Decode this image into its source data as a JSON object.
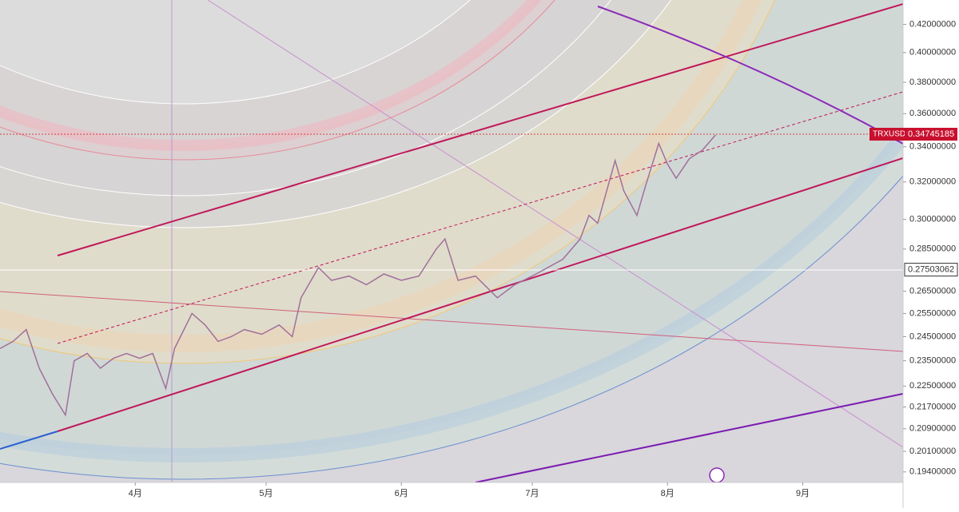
{
  "chart_data": {
    "type": "line",
    "symbol": "TRXUSD",
    "log_scale": true,
    "x": [
      "03-01",
      "03-04",
      "03-07",
      "03-10",
      "03-13",
      "03-16",
      "03-18",
      "03-21",
      "03-24",
      "03-27",
      "03-30",
      "04-02",
      "04-05",
      "04-08",
      "04-10",
      "04-14",
      "04-17",
      "04-20",
      "04-23",
      "04-26",
      "04-30",
      "05-04",
      "05-07",
      "05-09",
      "05-13",
      "05-16",
      "05-20",
      "05-24",
      "05-28",
      "06-01",
      "06-05",
      "06-09",
      "06-11",
      "06-14",
      "06-18",
      "06-23",
      "06-27",
      "07-01",
      "07-08",
      "07-12",
      "07-14",
      "07-16",
      "07-20",
      "07-22",
      "07-25",
      "07-27",
      "07-30",
      "08-01",
      "08-03",
      "08-06",
      "08-09",
      "08-12"
    ],
    "series": [
      {
        "name": "TRXUSD",
        "color": "#a0709a",
        "values": [
          0.24,
          0.243,
          0.248,
          0.232,
          0.222,
          0.214,
          0.235,
          0.238,
          0.232,
          0.236,
          0.238,
          0.236,
          0.238,
          0.224,
          0.24,
          0.255,
          0.25,
          0.243,
          0.245,
          0.248,
          0.246,
          0.25,
          0.245,
          0.262,
          0.276,
          0.27,
          0.272,
          0.268,
          0.273,
          0.27,
          0.272,
          0.285,
          0.29,
          0.27,
          0.272,
          0.262,
          0.268,
          0.272,
          0.28,
          0.29,
          0.302,
          0.298,
          0.332,
          0.315,
          0.302,
          0.318,
          0.342,
          0.33,
          0.322,
          0.333,
          0.338,
          0.347
        ]
      }
    ],
    "last_price": 0.34745185,
    "crosshair_price": 0.27503062,
    "xlim": [
      "03-01",
      "09-24"
    ],
    "xticks": [
      {
        "value": "04-01",
        "label": "4月"
      },
      {
        "value": "05-01",
        "label": "5月"
      },
      {
        "value": "06-01",
        "label": "6月"
      },
      {
        "value": "07-01",
        "label": "7月"
      },
      {
        "value": "08-01",
        "label": "8月"
      },
      {
        "value": "09-01",
        "label": "9月"
      }
    ],
    "ylim": [
      0.1905,
      0.438
    ],
    "yticks": [
      {
        "value": 0.42,
        "label": "0.42000000"
      },
      {
        "value": 0.4,
        "label": "0.40000000"
      },
      {
        "value": 0.38,
        "label": "0.38000000"
      },
      {
        "value": 0.36,
        "label": "0.36000000"
      },
      {
        "value": 0.34,
        "label": "0.34000000"
      },
      {
        "value": 0.32,
        "label": "0.32000000"
      },
      {
        "value": 0.3,
        "label": "0.30000000"
      },
      {
        "value": 0.285,
        "label": "0.28500000"
      },
      {
        "value": 0.265,
        "label": "0.26500000"
      },
      {
        "value": 0.255,
        "label": "0.25500000"
      },
      {
        "value": 0.245,
        "label": "0.24500000"
      },
      {
        "value": 0.235,
        "label": "0.23500000"
      },
      {
        "value": 0.225,
        "label": "0.22500000"
      },
      {
        "value": 0.217,
        "label": "0.21700000"
      },
      {
        "value": 0.209,
        "label": "0.20900000"
      },
      {
        "value": 0.201,
        "label": "0.20100000"
      },
      {
        "value": 0.194,
        "label": "0.19400000"
      }
    ]
  }
}
